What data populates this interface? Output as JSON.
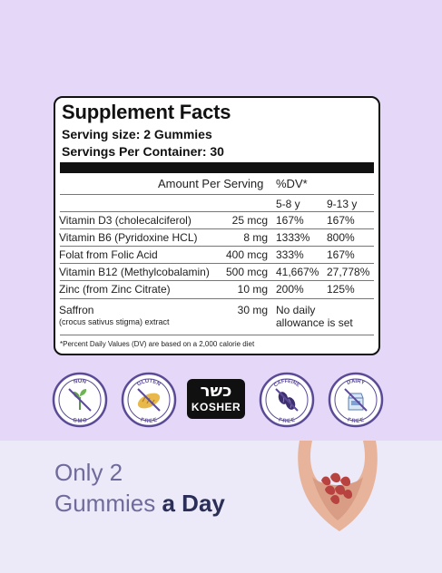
{
  "facts": {
    "title": "Supplement Facts",
    "serving_size": "Serving size: 2 Gummies",
    "servings_per_container": "Servings Per Container: 30",
    "amount_header": "Amount Per Serving",
    "dv_header": "%DV*",
    "age_a": "5-8 y",
    "age_b": "9-13 y",
    "rows": [
      {
        "name": "Vitamin D3 (cholecalciferol)",
        "amount": "25 mcg",
        "dv_a": "167%",
        "dv_b": "167%"
      },
      {
        "name": "Vitamin B6 (Pyridoxine HCL)",
        "amount": "8 mg",
        "dv_a": "1333%",
        "dv_b": "800%"
      },
      {
        "name": "Folat from Folic Acid",
        "amount": "400 mcg",
        "dv_a": "333%",
        "dv_b": "167%"
      },
      {
        "name": "Vitamin B12 (Methylcobalamin)",
        "amount": "500 mcg",
        "dv_a": "41,667%",
        "dv_b": "27,778%"
      },
      {
        "name": "Zinc (from Zinc Citrate)",
        "amount": "10 mg",
        "dv_a": "200%",
        "dv_b": "125%"
      }
    ],
    "saffron": {
      "name": "Saffron",
      "subname": "(crocus sativus stigma) extract",
      "amount": "30 mg",
      "note_line1": "No daily",
      "note_line2": "allowance is set"
    },
    "footnote": "*Percent Daily Values (DV) are based on a 2,000 calorie diet"
  },
  "badges": {
    "non_gmo": {
      "top": "NON",
      "bottom": "GMO"
    },
    "gluten_free": {
      "top": "GLUTEN",
      "bottom": "FREE"
    },
    "kosher": {
      "hebrew": "כשר",
      "latin": "KOSHER"
    },
    "caffeine_free": {
      "top": "CAFFEINE",
      "bottom": "FREE"
    },
    "dairy_free": {
      "top": "DAIRY",
      "bottom": "FREE"
    }
  },
  "tagline": {
    "line1": "Only 2",
    "line2_regular": "Gummies",
    "line2_bold": "a Day"
  },
  "colors": {
    "top_bg": "#e4d7f8",
    "bottom_bg": "#eceaf8",
    "badge_ring": "#5b4b96",
    "tagline_light": "#6f6b9c",
    "tagline_dark": "#2b2f58",
    "gummy": "#b8423f"
  }
}
